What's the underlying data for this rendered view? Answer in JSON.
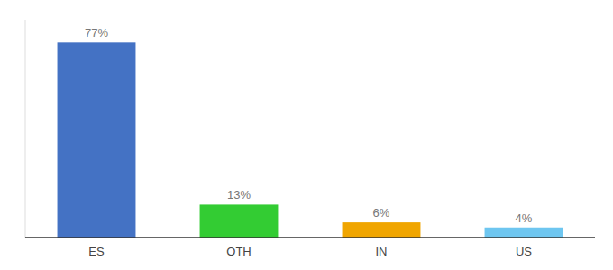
{
  "chart_data": {
    "type": "bar",
    "categories": [
      "ES",
      "OTH",
      "IN",
      "US"
    ],
    "values": [
      77,
      13,
      6,
      4
    ],
    "value_labels": [
      "77%",
      "13%",
      "6%",
      "4%"
    ],
    "colors": [
      "#4472c4",
      "#33cc33",
      "#f0a500",
      "#6ec6f0"
    ],
    "ylim": [
      0,
      86
    ],
    "data_labels": true,
    "tick_labels": "x",
    "grid": false
  }
}
